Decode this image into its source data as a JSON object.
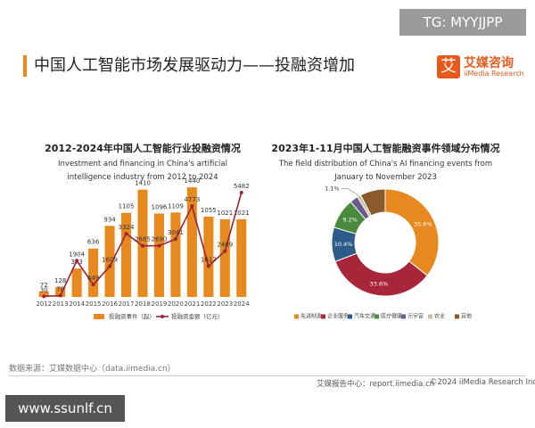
{
  "header": {
    "title": "中国人工智能市场发展驱动力——投融资增加",
    "logo_cn": "艾媒咨询",
    "logo_en": "iiMedia Research",
    "logo_mark": "艾"
  },
  "watermarks": [
    "TG: MYYJJPP",
    "www.ssunlf.cn"
  ],
  "chart_data": [
    {
      "type": "bar",
      "title": "2012-2024年中国人工智能行业投融资情况",
      "subtitle": "Investment and financing in China's artificial intelligence industry from 2012 to 2024",
      "categories": [
        "2012",
        "2013",
        "2014",
        "2015",
        "2016",
        "2017",
        "2018",
        "2019",
        "2020",
        "2021",
        "2022",
        "2023",
        "2024"
      ],
      "series": [
        {
          "name": "投融资事件（起）",
          "color": "#e8891f",
          "type": "bar",
          "values": [
            72,
            128,
            373,
            636,
            934,
            1105,
            1410,
            1096,
            1109,
            1440,
            1055,
            1021,
            1021
          ]
        },
        {
          "name": "投融资金额（亿元）",
          "color": "#9b2335",
          "type": "line",
          "axis": "y2",
          "values": [
            30,
            70,
            1904,
            649,
            1609,
            3324,
            2685,
            2690,
            3041,
            4773,
            1617,
            2409,
            5482
          ]
        }
      ],
      "ylim": [
        0,
        1500
      ],
      "y2lim": [
        0,
        6000
      ],
      "legend": "bottom"
    },
    {
      "type": "donut",
      "title": "2023年1-11月中国人工智能融资事件领域分布情况",
      "subtitle": "The field distribution of China's AI financing events from January to November 2023",
      "categories": [
        "先进制造",
        "企业服务",
        "汽车交通",
        "医疗健康",
        "元宇宙",
        "农业",
        "其他"
      ],
      "values": [
        35.6,
        33.6,
        10.4,
        9.2,
        2.5,
        1.1,
        7.6
      ],
      "value_labels": [
        "35.6%",
        "33.6%",
        "10.4%",
        "9.2%",
        null,
        "1.1%",
        null
      ],
      "colors": [
        "#e8891f",
        "#a8263a",
        "#2e5c8a",
        "#4a8a3c",
        "#6b5a8e",
        "#c9bfa8",
        "#8b5a2b"
      ],
      "legend": "bottom"
    }
  ],
  "footer": {
    "source": "数据来源：艾媒数据中心（data.iimedia.cn）",
    "report": "艾媒报告中心：report.iimedia.cn",
    "copyright": "©2024 iiMedia Research Inc"
  }
}
